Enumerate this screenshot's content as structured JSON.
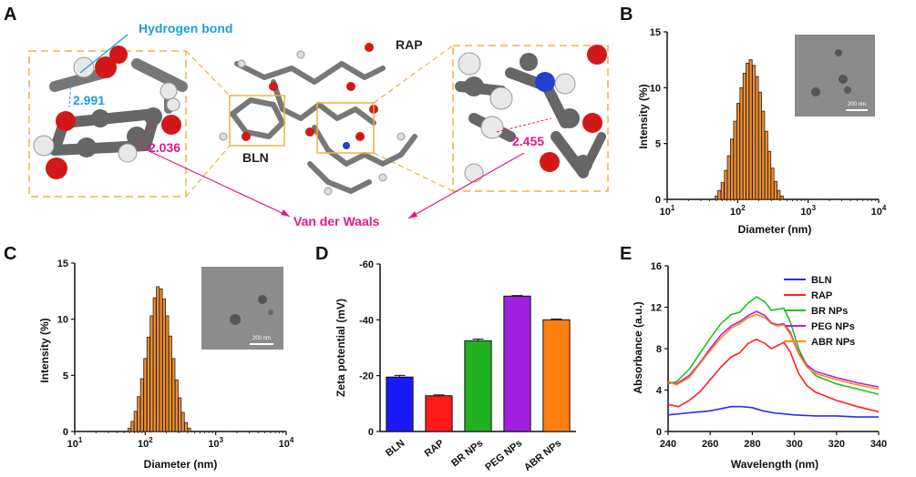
{
  "panels": {
    "A": {
      "letter": "A",
      "hbond_label": "Hydrogen bond",
      "dist1": "2.991",
      "dist2": "2.036",
      "dist3": "2.455",
      "bln_label": "BLN",
      "rap_label": "RAP",
      "vdw_label": "Van der Waals",
      "colors": {
        "hbond": "#1aa0e0",
        "vdw": "#e0188a",
        "box": "#f0b040"
      }
    },
    "B": {
      "letter": "B",
      "scale_label": "200 nm"
    },
    "C": {
      "letter": "C",
      "scale_label": "200 nm"
    },
    "D": {
      "letter": "D"
    },
    "E": {
      "letter": "E"
    }
  },
  "chart_data": [
    {
      "id": "B",
      "type": "bar",
      "xscale": "log",
      "xlabel": "Diameter (nm)",
      "ylabel": "Intensity (%)",
      "xlim": [
        10,
        10000
      ],
      "ylim": [
        0,
        15
      ],
      "xtick_labels": [
        {
          "base": "10",
          "exp": "1"
        },
        {
          "base": "10",
          "exp": "2"
        },
        {
          "base": "10",
          "exp": "3"
        },
        {
          "base": "10",
          "exp": "4"
        }
      ],
      "yticks": [
        0,
        5,
        10,
        15
      ],
      "x": [
        50,
        55,
        61,
        68,
        75,
        83,
        92,
        102,
        113,
        125,
        138,
        153,
        170,
        188,
        208,
        230,
        255,
        282,
        312,
        345,
        382,
        423
      ],
      "values": [
        0.3,
        0.8,
        1.5,
        2.6,
        3.9,
        5.4,
        7.0,
        8.6,
        10.0,
        11.3,
        12.2,
        12.5,
        12.0,
        11.0,
        9.6,
        7.9,
        6.1,
        4.3,
        2.8,
        1.6,
        0.8,
        0.3
      ],
      "color": "#f28e2b",
      "inset": "TEM image"
    },
    {
      "id": "C",
      "type": "bar",
      "xscale": "log",
      "xlabel": "Diameter (nm)",
      "ylabel": "Intensity (%)",
      "xlim": [
        10,
        10000
      ],
      "ylim": [
        0,
        15
      ],
      "xtick_labels": [
        {
          "base": "10",
          "exp": "1"
        },
        {
          "base": "10",
          "exp": "2"
        },
        {
          "base": "10",
          "exp": "3"
        },
        {
          "base": "10",
          "exp": "4"
        }
      ],
      "yticks": [
        0,
        5,
        10,
        15
      ],
      "x": [
        60,
        66,
        73,
        81,
        90,
        100,
        111,
        123,
        136,
        151,
        167,
        185,
        205,
        227,
        252,
        279,
        309,
        342,
        379,
        420
      ],
      "values": [
        0.3,
        0.9,
        1.8,
        3.1,
        4.7,
        6.5,
        8.4,
        10.3,
        11.9,
        12.9,
        12.7,
        11.8,
        10.3,
        8.5,
        6.5,
        4.6,
        3.0,
        1.7,
        0.8,
        0.3
      ],
      "color": "#f28e2b",
      "inset": "TEM image"
    },
    {
      "id": "D",
      "type": "bar",
      "ylabel": "Zeta potential (mV)",
      "ylim": [
        0,
        -60
      ],
      "yticks": [
        0,
        -20,
        -40,
        -60
      ],
      "categories": [
        "BLN",
        "RAP",
        "BR NPs",
        "PEG NPs",
        "ABR NPs"
      ],
      "values": [
        -19.5,
        -12.8,
        -32.5,
        -48.5,
        -40.0
      ],
      "errors": [
        0.6,
        0.3,
        0.6,
        0.2,
        0.3
      ],
      "colors": [
        "#1a1aff",
        "#ff1a1a",
        "#20b020",
        "#a020e0",
        "#ff8010"
      ]
    },
    {
      "id": "E",
      "type": "line",
      "xlabel": "Wavelength (nm)",
      "ylabel": "Absorbance (a.u.)",
      "xlim": [
        240,
        340
      ],
      "ylim": [
        0,
        16
      ],
      "xticks": [
        240,
        260,
        280,
        300,
        320,
        340
      ],
      "yticks": [
        0,
        4,
        8,
        12,
        16
      ],
      "series": [
        {
          "name": "BLN",
          "color": "#2a2aff",
          "points": [
            [
              240,
              1.6
            ],
            [
              250,
              1.8
            ],
            [
              260,
              2.0
            ],
            [
              270,
              2.4
            ],
            [
              275,
              2.4
            ],
            [
              280,
              2.3
            ],
            [
              285,
              2.0
            ],
            [
              290,
              1.8
            ],
            [
              300,
              1.6
            ],
            [
              310,
              1.5
            ],
            [
              320,
              1.5
            ],
            [
              330,
              1.4
            ],
            [
              340,
              1.4
            ]
          ]
        },
        {
          "name": "RAP",
          "color": "#ff2020",
          "points": [
            [
              240,
              2.6
            ],
            [
              245,
              2.4
            ],
            [
              250,
              3.0
            ],
            [
              255,
              3.8
            ],
            [
              260,
              5.0
            ],
            [
              265,
              6.2
            ],
            [
              270,
              7.2
            ],
            [
              274,
              7.6
            ],
            [
              278,
              8.5
            ],
            [
              282,
              8.9
            ],
            [
              286,
              8.5
            ],
            [
              289,
              8.0
            ],
            [
              292,
              8.3
            ],
            [
              295,
              8.6
            ],
            [
              298,
              7.7
            ],
            [
              302,
              5.6
            ],
            [
              306,
              4.4
            ],
            [
              310,
              3.8
            ],
            [
              320,
              3.0
            ],
            [
              330,
              2.4
            ],
            [
              340,
              1.9
            ]
          ]
        },
        {
          "name": "BR NPs",
          "color": "#20c020",
          "points": [
            [
              240,
              4.6
            ],
            [
              244,
              4.8
            ],
            [
              250,
              6.0
            ],
            [
              255,
              7.5
            ],
            [
              260,
              9.0
            ],
            [
              265,
              10.4
            ],
            [
              270,
              11.3
            ],
            [
              274,
              11.5
            ],
            [
              278,
              12.4
            ],
            [
              282,
              13.0
            ],
            [
              286,
              12.5
            ],
            [
              289,
              11.7
            ],
            [
              292,
              11.8
            ],
            [
              295,
              11.9
            ],
            [
              298,
              10.6
            ],
            [
              302,
              8.0
            ],
            [
              306,
              6.3
            ],
            [
              310,
              5.4
            ],
            [
              320,
              4.6
            ],
            [
              330,
              4.1
            ],
            [
              340,
              3.6
            ]
          ]
        },
        {
          "name": "PEG NPs",
          "color": "#b020e0",
          "points": [
            [
              240,
              4.8
            ],
            [
              244,
              4.6
            ],
            [
              250,
              5.4
            ],
            [
              255,
              6.6
            ],
            [
              260,
              8.0
            ],
            [
              265,
              9.3
            ],
            [
              270,
              10.2
            ],
            [
              274,
              10.6
            ],
            [
              278,
              11.2
            ],
            [
              282,
              11.6
            ],
            [
              286,
              11.2
            ],
            [
              289,
              10.5
            ],
            [
              292,
              10.3
            ],
            [
              295,
              10.4
            ],
            [
              298,
              9.6
            ],
            [
              302,
              7.6
            ],
            [
              306,
              6.4
            ],
            [
              310,
              5.8
            ],
            [
              320,
              5.2
            ],
            [
              330,
              4.7
            ],
            [
              340,
              4.3
            ]
          ]
        },
        {
          "name": "ABR NPs",
          "color": "#ff8a10",
          "points": [
            [
              240,
              4.8
            ],
            [
              244,
              4.5
            ],
            [
              250,
              5.2
            ],
            [
              255,
              6.5
            ],
            [
              260,
              7.8
            ],
            [
              265,
              9.0
            ],
            [
              270,
              10.0
            ],
            [
              274,
              10.4
            ],
            [
              278,
              11.0
            ],
            [
              282,
              11.3
            ],
            [
              286,
              11.0
            ],
            [
              289,
              10.4
            ],
            [
              292,
              10.2
            ],
            [
              295,
              10.3
            ],
            [
              298,
              9.4
            ],
            [
              302,
              7.5
            ],
            [
              306,
              6.2
            ],
            [
              310,
              5.6
            ],
            [
              320,
              5.0
            ],
            [
              330,
              4.5
            ],
            [
              340,
              4.1
            ]
          ]
        }
      ]
    }
  ]
}
